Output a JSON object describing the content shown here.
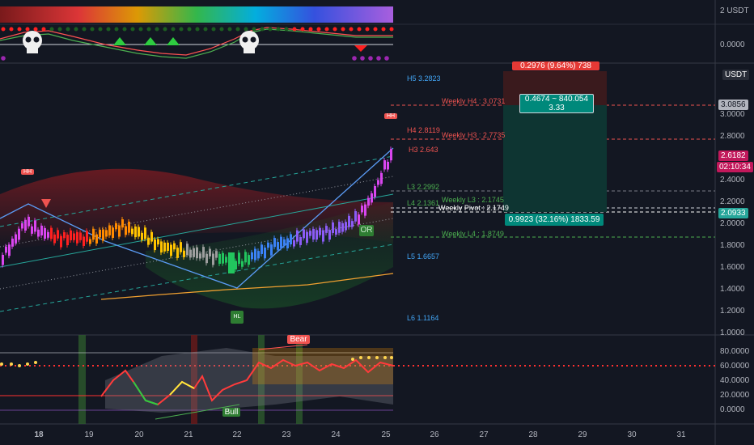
{
  "colors": {
    "bg": "#131722",
    "grid": "#363a45",
    "up": "#26a69a",
    "down": "#ef5350"
  },
  "top_axis": {
    "label": "2 USDT"
  },
  "osc1_axis": {
    "label": "0.0000"
  },
  "main_axis": {
    "currency": "USDT",
    "ticks": [
      "3.0000",
      "2.8000",
      "2.6000",
      "2.4000",
      "2.2000",
      "2.0000",
      "1.8000",
      "1.6000",
      "1.4000",
      "1.2000",
      "1.0000"
    ],
    "target_price": "3.0856",
    "last_price": "2.6182",
    "countdown": "02:10:34",
    "stop_price": "2.0933"
  },
  "osc2_axis": {
    "ticks": [
      "80.0000",
      "60.0000",
      "40.0000",
      "20.0000",
      "0.0000"
    ]
  },
  "x_axis": {
    "labels": [
      "18",
      "19",
      "20",
      "21",
      "22",
      "23",
      "24",
      "25",
      "26",
      "27",
      "28",
      "29",
      "30",
      "31"
    ]
  },
  "levels": {
    "h5": "H5 3.2823",
    "h4": "H4 2.8119",
    "h3": "H3 2.643",
    "l3": "L3 2.2992",
    "l4": "L4 2.1361",
    "l5": "L5 1.6657",
    "l6": "L6 1.1164",
    "w_h4": "Weekly H4 : 3.0731",
    "w_h3": "Weekly H3 : 2.7735",
    "w_l3": "Weekly L3 : 2.1745",
    "w_pivot": "Weekly Pivot : 2.1749",
    "w_l4": "Weekly L4 : 1.8749"
  },
  "position": {
    "risk_label": "0.2976 (9.64%) 738",
    "target_label": "0.4674 ~ 840.054",
    "target_sub": "3.33",
    "stop_label": "0.9923 (32.16%) 1833.59"
  },
  "markers": {
    "hh": "HH",
    "hl": "HL",
    "or": "OR",
    "bear": "Bear",
    "bull": "Bull"
  }
}
